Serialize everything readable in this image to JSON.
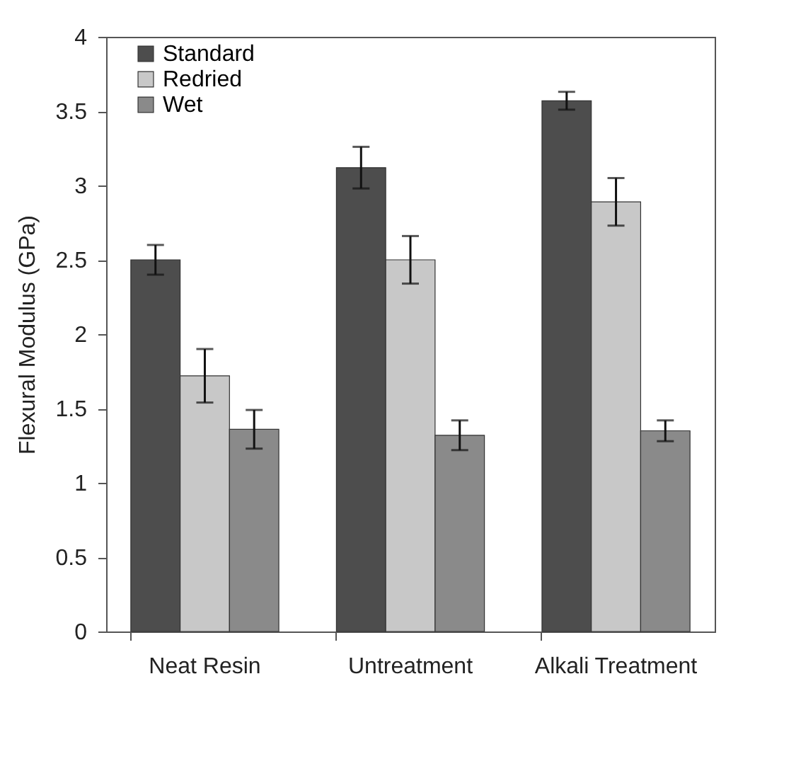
{
  "chart_data": {
    "type": "bar",
    "ylabel": "Flexural Modulus (GPa)",
    "categories": [
      "Neat Resin",
      "Untreatment",
      "Alkali Treatment"
    ],
    "series": [
      {
        "name": "Standard",
        "color": "#4d4d4d",
        "values": [
          2.5,
          3.12,
          3.57
        ],
        "errors": [
          0.1,
          0.14,
          0.06
        ]
      },
      {
        "name": "Redried",
        "color": "#c8c8c8",
        "values": [
          1.72,
          2.5,
          2.89
        ],
        "errors": [
          0.18,
          0.16,
          0.16
        ]
      },
      {
        "name": "Wet",
        "color": "#8a8a8a",
        "values": [
          1.36,
          1.32,
          1.35
        ],
        "errors": [
          0.13,
          0.1,
          0.07
        ]
      }
    ],
    "ylim": [
      0,
      4
    ],
    "yticks": [
      0,
      0.5,
      1,
      1.5,
      2,
      2.5,
      3,
      3.5,
      4
    ],
    "grid": false,
    "legend": "top left"
  }
}
